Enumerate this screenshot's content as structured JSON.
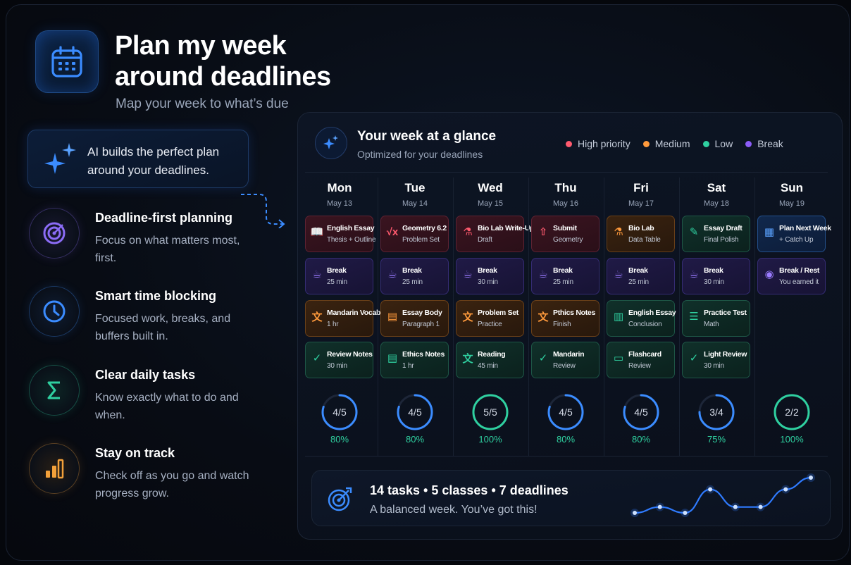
{
  "header": {
    "title_line1": "Plan my week",
    "title_line2": "around deadlines",
    "subtitle": "Map your week to what’s due"
  },
  "ai_card": {
    "text_line1": "AI builds the perfect plan",
    "text_line2": "around your deadlines."
  },
  "features": [
    {
      "icon": "target-icon",
      "title": "Deadline-first planning",
      "desc": "Focus on what matters most, first.",
      "color": "#8b6cf6"
    },
    {
      "icon": "clock-icon",
      "title": "Smart time blocking",
      "desc": "Focused work, breaks, and buffers built in.",
      "color": "#3b8cff"
    },
    {
      "icon": "sigma-icon",
      "title": "Clear daily tasks",
      "desc": "Know exactly what to do and when.",
      "color": "#2fd0a0"
    },
    {
      "icon": "bar-chart-icon",
      "title": "Stay on track",
      "desc": "Check off as you go and watch progress grow.",
      "color": "#f2a03a"
    }
  ],
  "panel": {
    "title": "Your week at a glance",
    "subtitle": "Optimized for your deadlines",
    "legend": [
      {
        "label": "High priority",
        "color": "#ff5a6e"
      },
      {
        "label": "Medium",
        "color": "#ff9a3c"
      },
      {
        "label": "Low",
        "color": "#2fd0a0"
      },
      {
        "label": "Break",
        "color": "#8b5cf6"
      }
    ],
    "days": [
      {
        "name": "Mon",
        "date": "May 13",
        "progress": "4/5",
        "percent": "80%",
        "fill": 0.8
      },
      {
        "name": "Tue",
        "date": "May 14",
        "progress": "4/5",
        "percent": "80%",
        "fill": 0.8
      },
      {
        "name": "Wed",
        "date": "May 15",
        "progress": "5/5",
        "percent": "100%",
        "fill": 1.0
      },
      {
        "name": "Thu",
        "date": "May 16",
        "progress": "4/5",
        "percent": "80%",
        "fill": 0.8
      },
      {
        "name": "Fri",
        "date": "May 17",
        "progress": "4/5",
        "percent": "80%",
        "fill": 0.8
      },
      {
        "name": "Sat",
        "date": "May 18",
        "progress": "3/4",
        "percent": "75%",
        "fill": 0.75
      },
      {
        "name": "Sun",
        "date": "May 19",
        "progress": "2/2",
        "percent": "100%",
        "fill": 1.0
      }
    ],
    "tasks": [
      [
        {
          "t1": "English Essay",
          "t2": "Thesis + Outline",
          "kind": "hp",
          "icon": "book-icon",
          "glyph": "📖"
        },
        {
          "t1": "Break",
          "t2": "25 min",
          "kind": "br",
          "icon": "coffee-icon",
          "glyph": "☕"
        },
        {
          "t1": "Mandarin Vocab",
          "t2": "1 hr",
          "kind": "md",
          "icon": "translate-icon",
          "glyph": "文"
        },
        {
          "t1": "Review Notes",
          "t2": "30 min",
          "kind": "lw",
          "icon": "check-circle-icon",
          "glyph": "✓"
        }
      ],
      [
        {
          "t1": "Geometry 6.2",
          "t2": "Problem Set",
          "kind": "hp",
          "icon": "sqrt-icon",
          "glyph": "√x"
        },
        {
          "t1": "Break",
          "t2": "25 min",
          "kind": "br",
          "icon": "coffee-icon",
          "glyph": "☕"
        },
        {
          "t1": "Essay Body",
          "t2": "Paragraph 1",
          "kind": "md",
          "icon": "document-icon",
          "glyph": "▤"
        },
        {
          "t1": "Ethics Notes",
          "t2": "1 hr",
          "kind": "lw",
          "icon": "document-icon",
          "glyph": "▤"
        }
      ],
      [
        {
          "t1": "Bio Lab Write-Up",
          "t2": "Draft",
          "kind": "hp",
          "icon": "flask-icon",
          "glyph": "⚗"
        },
        {
          "t1": "Break",
          "t2": "30 min",
          "kind": "br",
          "icon": "coffee-icon",
          "glyph": "☕"
        },
        {
          "t1": "Problem Set",
          "t2": "Practice",
          "kind": "md",
          "icon": "translate-icon",
          "glyph": "文"
        },
        {
          "t1": "Reading",
          "t2": "45 min",
          "kind": "lw",
          "icon": "translate-icon",
          "glyph": "文"
        }
      ],
      [
        {
          "t1": "Submit",
          "t2": "Geometry",
          "kind": "hp",
          "icon": "upload-icon",
          "glyph": "⇧"
        },
        {
          "t1": "Break",
          "t2": "25 min",
          "kind": "br",
          "icon": "coffee-icon",
          "glyph": "☕"
        },
        {
          "t1": "Pthics Notes",
          "t2": "Finish",
          "kind": "md",
          "icon": "translate-icon",
          "glyph": "文"
        },
        {
          "t1": "Mandarin",
          "t2": "Review",
          "kind": "lw",
          "icon": "check-shield-icon",
          "glyph": "✓"
        }
      ],
      [
        {
          "t1": "Bio Lab",
          "t2": "Data Table",
          "kind": "md",
          "icon": "flask-icon",
          "glyph": "⚗"
        },
        {
          "t1": "Break",
          "t2": "25 min",
          "kind": "br",
          "icon": "coffee-icon",
          "glyph": "☕"
        },
        {
          "t1": "English Essay",
          "t2": "Conclusion",
          "kind": "lw",
          "icon": "book-icon",
          "glyph": "▥"
        },
        {
          "t1": "Flashcard",
          "t2": "Review",
          "kind": "lw",
          "icon": "flashcard-icon",
          "glyph": "▭"
        }
      ],
      [
        {
          "t1": "Essay Draft",
          "t2": "Final Polish",
          "kind": "lw",
          "icon": "pencil-icon",
          "glyph": "✎"
        },
        {
          "t1": "Break",
          "t2": "30 min",
          "kind": "br",
          "icon": "coffee-icon",
          "glyph": "☕"
        },
        {
          "t1": "Practice Test",
          "t2": "Math",
          "kind": "lw",
          "icon": "checklist-icon",
          "glyph": "☰"
        },
        {
          "t1": "Light Review",
          "t2": "30 min",
          "kind": "lw",
          "icon": "check-circle-icon",
          "glyph": "✓"
        }
      ],
      [
        {
          "t1": "Plan Next Week",
          "t2": "+ Catch Up",
          "kind": "bl",
          "icon": "calendar-icon",
          "glyph": "▦"
        },
        {
          "t1": "Break / Rest",
          "t2": "You earned it",
          "kind": "br",
          "icon": "headphones-icon",
          "glyph": "◉"
        }
      ]
    ]
  },
  "summary": {
    "title": "14 tasks • 5 classes • 7 deadlines",
    "subtitle": "A balanced week. You’ve got this!",
    "trend": [
      2,
      3,
      2,
      6,
      3,
      3,
      6,
      8
    ]
  }
}
